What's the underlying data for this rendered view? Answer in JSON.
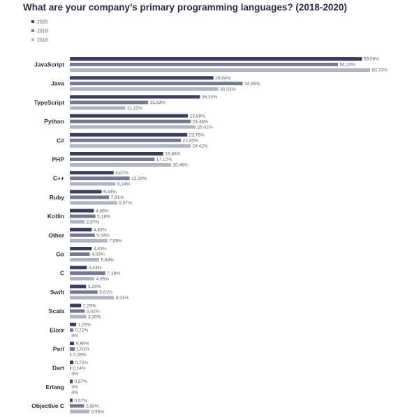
{
  "chart_data": {
    "type": "bar",
    "orientation": "horizontal",
    "title": "What are your company’s primary programming languages? (2018-2020)",
    "legend_position": "top-left",
    "grid": false,
    "xlim": [
      0,
      62
    ],
    "categories": [
      "JavaScript",
      "Java",
      "TypeScript",
      "Python",
      "C#",
      "PHP",
      "C++",
      "Ruby",
      "Kotlin",
      "Other",
      "Go",
      "C",
      "Swift",
      "Scala",
      "Elixir",
      "Perl",
      "Dart",
      "Erlang",
      "Objective C"
    ],
    "series": [
      {
        "name": "2020",
        "color": "#3b3f5c",
        "values": [
          59.08,
          29.04,
          26.32,
          23.89,
          23.75,
          18.88,
          8.87,
          6.44,
          4.86,
          4.43,
          4.43,
          3.43,
          3.29,
          2.29,
          1.29,
          0.86,
          0.72,
          0.57,
          0.57
        ],
        "labels": [
          "59,08%",
          "29,04%",
          "26,32%",
          "23,89%",
          "23,75%",
          "18,88%",
          "8,87%",
          "6,44%",
          "4,86%",
          "4,43%",
          "4,43%",
          "3,43%",
          "3,29%",
          "2,29%",
          "1,29%",
          "0,86%",
          "0,72%",
          "0,57%",
          "0,57%"
        ]
      },
      {
        "name": "2019",
        "color": "#757a92",
        "values": [
          54.24,
          34.96,
          15.83,
          24.46,
          22.45,
          17.12,
          12.09,
          7.91,
          5.18,
          5.04,
          4.03,
          7.19,
          5.61,
          3.02,
          0.72,
          1.01,
          0.14,
          0,
          2.88
        ],
        "labels": [
          "54,24%",
          "34,96%",
          "15,83%",
          "24,46%",
          "22,45%",
          "17,12%",
          "12,09%",
          "7,91%",
          "5,18%",
          "5,04%",
          "4,03%",
          "7,19%",
          "5,61%",
          "3,02%",
          "0,72%",
          "1,01%",
          "0,14%",
          "0%",
          "2,88%"
        ]
      },
      {
        "name": "2018",
        "color": "#b0b4c2",
        "values": [
          60.73,
          30.03,
          11.22,
          25.41,
          24.42,
          20.46,
          9.24,
          9.57,
          2.97,
          7.59,
          5.94,
          4.95,
          8.91,
          3.3,
          0,
          0.33,
          0,
          0,
          3.96
        ],
        "labels": [
          "60,73%",
          "30,03%",
          "11,22%",
          "25,41%",
          "24,42%",
          "20,46%",
          "9,24%",
          "9,57%",
          "2,97%",
          "7,59%",
          "5,94%",
          "4,95%",
          "8,91%",
          "3,30%",
          "0%",
          "0,33%",
          "0%",
          "0%",
          "3,96%"
        ]
      }
    ]
  }
}
